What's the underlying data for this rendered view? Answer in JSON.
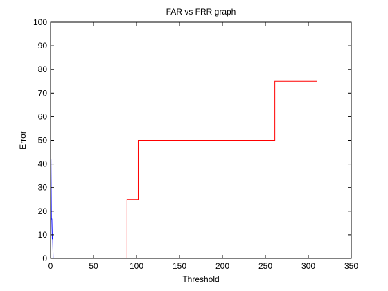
{
  "chart_data": {
    "type": "line",
    "title": "FAR vs FRR graph",
    "xlabel": "Threshold",
    "ylabel": "Error",
    "xlim": [
      0,
      350
    ],
    "ylim": [
      0,
      100
    ],
    "xticks": [
      0,
      50,
      100,
      150,
      200,
      250,
      300,
      350
    ],
    "yticks": [
      0,
      10,
      20,
      30,
      40,
      50,
      60,
      70,
      80,
      90,
      100
    ],
    "grid": false,
    "legend": "none",
    "series": [
      {
        "color": "#0000ff",
        "x": [
          0,
          0.5,
          1,
          1.5,
          2,
          2.5,
          3
        ],
        "y": [
          41.7,
          41.7,
          16.7,
          16.7,
          8.3,
          8.3,
          0
        ]
      },
      {
        "color": "#ff0000",
        "x": [
          89,
          89,
          102,
          102,
          261,
          261,
          310
        ],
        "y": [
          0,
          25,
          25,
          50,
          50,
          75,
          75
        ]
      }
    ]
  }
}
